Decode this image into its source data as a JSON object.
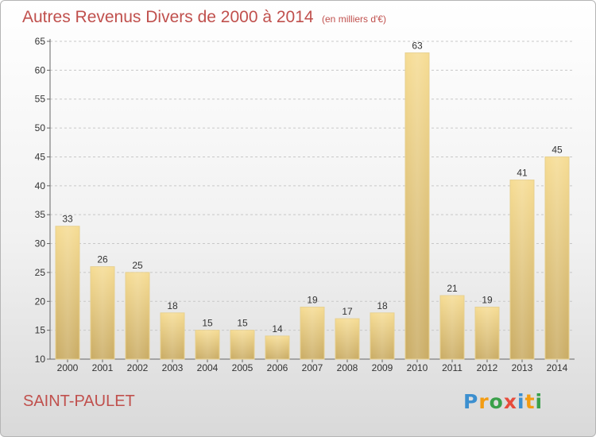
{
  "title": "Autres Revenus Divers de 2000 à 2014",
  "subtitle": "(en milliers d'€)",
  "commune": "SAINT-PAULET",
  "logo": {
    "letters": [
      "P",
      "r",
      "o",
      "x",
      "i",
      "t",
      "i"
    ],
    "colors": [
      "#3c8fcf",
      "#f39c12",
      "#3aa04a",
      "#e74c3c",
      "#3c8fcf",
      "#f39c12",
      "#3aa04a"
    ]
  },
  "chart_data": {
    "type": "bar",
    "categories": [
      "2000",
      "2001",
      "2002",
      "2003",
      "2004",
      "2005",
      "2006",
      "2007",
      "2008",
      "2009",
      "2010",
      "2011",
      "2012",
      "2013",
      "2014"
    ],
    "values": [
      33,
      26,
      25,
      18,
      15,
      15,
      14,
      19,
      17,
      18,
      63,
      21,
      19,
      41,
      45
    ],
    "ylim": [
      10,
      65
    ],
    "yticks": [
      10,
      15,
      20,
      25,
      30,
      35,
      40,
      45,
      50,
      55,
      60,
      65
    ],
    "grid": "horizontal dashed",
    "bar_color": "#e8c878"
  }
}
